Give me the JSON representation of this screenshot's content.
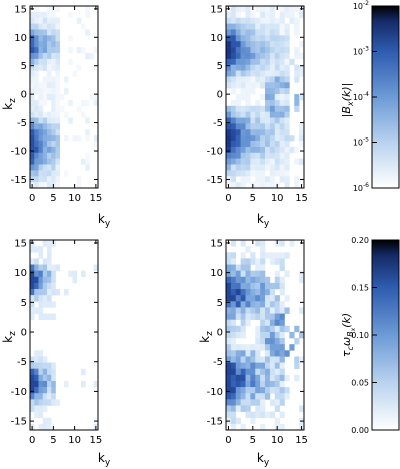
{
  "chart_data": [
    {
      "type": "heatmap",
      "panel": "top-left",
      "xlabel": "k",
      "xlabel_sub": "y",
      "ylabel": "k",
      "ylabel_sub": "z",
      "xlim": [
        0,
        16
      ],
      "ylim": [
        -16,
        16
      ],
      "xticks": [
        0,
        5,
        10,
        15
      ],
      "yticks": [
        15,
        10,
        5,
        0,
        -5,
        -10,
        -15
      ],
      "color_scale": "log",
      "vmin": 1e-06,
      "vmax": 0.01,
      "description": "Spectral amplitude concentrated at small ky, bands around kz≈+10 and kz≈-7..-12"
    },
    {
      "type": "heatmap",
      "panel": "top-right",
      "xlabel": "k",
      "xlabel_sub": "y",
      "xlim": [
        0,
        16
      ],
      "ylim": [
        -16,
        16
      ],
      "xticks": [
        0,
        5,
        10,
        15
      ],
      "yticks": [
        15,
        10,
        5,
        0,
        -5,
        -10,
        -15
      ],
      "color_scale": "log",
      "vmin": 1e-06,
      "vmax": 0.01
    },
    {
      "type": "heatmap",
      "panel": "bottom-left",
      "xlabel": "k",
      "xlabel_sub": "y",
      "ylabel": "k",
      "ylabel_sub": "z",
      "xlim": [
        0,
        16
      ],
      "ylim": [
        -16,
        16
      ],
      "xticks": [
        0,
        5,
        10,
        15
      ],
      "yticks": [
        15,
        10,
        5,
        0,
        -5,
        -10,
        -15
      ],
      "color_scale": "linear",
      "vmin": 0.0,
      "vmax": 0.2
    },
    {
      "type": "heatmap",
      "panel": "bottom-right",
      "xlabel": "k",
      "xlabel_sub": "y",
      "ylabel": "k",
      "ylabel_sub": "z",
      "xlim": [
        0,
        16
      ],
      "ylim": [
        -16,
        16
      ],
      "xticks": [
        0,
        5,
        10,
        15
      ],
      "yticks": [
        15,
        10,
        5,
        0,
        -5,
        -10,
        -15
      ],
      "color_scale": "linear",
      "vmin": 0.0,
      "vmax": 0.2
    }
  ],
  "colorbars": {
    "top": {
      "label_text": "|B",
      "label_sub": "x",
      "label_tail": "(k)|",
      "ticks": [
        {
          "value": 0.01,
          "base": "10",
          "exp": "-2"
        },
        {
          "value": 0.001,
          "base": "10",
          "exp": "-3"
        },
        {
          "value": 0.0001,
          "base": "10",
          "exp": "-4"
        },
        {
          "value": 1e-05,
          "base": "10",
          "exp": "-5"
        },
        {
          "value": 1e-06,
          "base": "10",
          "exp": "-6"
        }
      ]
    },
    "bottom": {
      "label_text": "τ",
      "label_sub": "c",
      "label_mid": "ω",
      "label_sub2": "B",
      "label_sub3": "x",
      "label_tail": "(k)",
      "ticks": [
        "0.20",
        "0.15",
        "0.10",
        "0.05",
        "0.00"
      ]
    }
  },
  "colors": {
    "low": "#ffffff",
    "mid": "#7aa6db",
    "high": "#1b3f91",
    "top": "#000000"
  }
}
